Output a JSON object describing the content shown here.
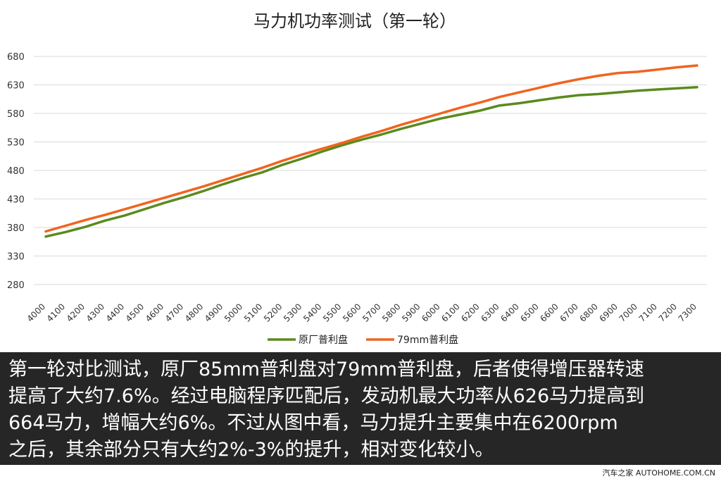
{
  "chart_data": {
    "type": "line",
    "title": "马力机功率测试（第一轮）",
    "xlabel": "",
    "ylabel": "",
    "categories": [
      "4000",
      "4100",
      "4200",
      "4300",
      "4400",
      "4500",
      "4600",
      "4700",
      "4800",
      "4900",
      "5000",
      "5100",
      "5200",
      "5300",
      "5400",
      "5500",
      "5600",
      "5700",
      "5800",
      "5900",
      "6000",
      "6100",
      "6200",
      "6300",
      "6400",
      "6500",
      "6600",
      "6700",
      "6800",
      "6900",
      "7000",
      "7100",
      "7200",
      "7300"
    ],
    "yticks": [
      "680",
      "630",
      "580",
      "530",
      "480",
      "430",
      "380",
      "330",
      "280"
    ],
    "ylim": [
      260,
      690
    ],
    "grid": true,
    "legend_position": "bottom-center",
    "series": [
      {
        "name": "原厂普利盘",
        "color": "#5a8a1e",
        "values": [
          364,
          372,
          381,
          392,
          401,
          412,
          423,
          433,
          444,
          456,
          467,
          477,
          490,
          501,
          513,
          524,
          534,
          543,
          553,
          562,
          571,
          578,
          585,
          594,
          598,
          603,
          608,
          612,
          614,
          617,
          620,
          622,
          624,
          626
        ]
      },
      {
        "name": "79mm普利盘",
        "color": "#f0641e",
        "values": [
          373,
          383,
          393,
          402,
          412,
          422,
          432,
          442,
          452,
          463,
          474,
          485,
          497,
          508,
          518,
          528,
          539,
          549,
          560,
          570,
          580,
          590,
          599,
          609,
          617,
          625,
          633,
          640,
          646,
          651,
          653,
          657,
          661,
          664
        ]
      }
    ]
  },
  "caption": {
    "lines": [
      "第一轮对比测试，原厂85mm普利盘对79mm普利盘，后者使得增压器转速",
      "提高了大约7.6%。经过电脑程序匹配后，发动机最大功率从626马力提高到",
      "664马力，增幅大约6%。不过从图中看，马力提升主要集中在6200rpm",
      "之后，其余部分只有大约2%-3%的提升，相对变化较小。"
    ]
  },
  "watermark": "汽车之家 AUTOHOME.COM.CN"
}
